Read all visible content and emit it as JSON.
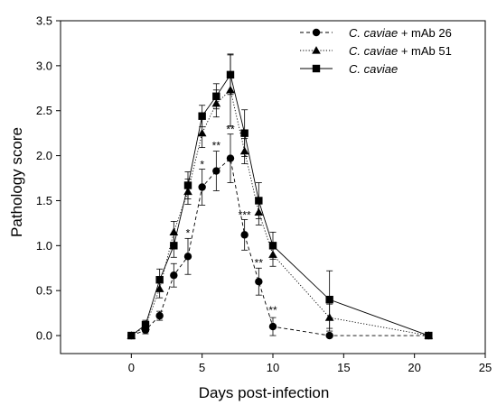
{
  "chart_data": {
    "type": "line",
    "xlabel": "Days post-infection",
    "ylabel": "Pathology score",
    "xlim": [
      -5,
      25
    ],
    "ylim": [
      -0.2,
      3.5
    ],
    "xticks": [
      0,
      5,
      10,
      15,
      20,
      25
    ],
    "yticks": [
      0.0,
      0.5,
      1.0,
      1.5,
      2.0,
      2.5,
      3.0,
      3.5
    ],
    "ytick_labels": [
      "0.0",
      "0.5",
      "1.0",
      "1.5",
      "2.0",
      "2.5",
      "3.0",
      "3.5"
    ],
    "legend_position": "top-right",
    "series": [
      {
        "key": "mab26",
        "name_italic": "C. caviae",
        "name_suffix": " + mAb 26",
        "marker": "circle",
        "dash": "dashed",
        "points": [
          {
            "x": 0,
            "y": 0.0,
            "err": 0.03
          },
          {
            "x": 1,
            "y": 0.06,
            "err": 0.04
          },
          {
            "x": 2,
            "y": 0.22,
            "err": 0.05
          },
          {
            "x": 3,
            "y": 0.67,
            "err": 0.13
          },
          {
            "x": 4,
            "y": 0.88,
            "err": 0.2
          },
          {
            "x": 5,
            "y": 1.65,
            "err": 0.2
          },
          {
            "x": 6,
            "y": 1.83,
            "err": 0.22
          },
          {
            "x": 7,
            "y": 1.97,
            "err": 0.27
          },
          {
            "x": 8,
            "y": 1.12,
            "err": 0.17
          },
          {
            "x": 9,
            "y": 0.6,
            "err": 0.15
          },
          {
            "x": 10,
            "y": 0.1,
            "err": 0.1
          },
          {
            "x": 14,
            "y": 0.0,
            "err": 0.0
          },
          {
            "x": 21,
            "y": 0.0,
            "err": 0.0
          }
        ]
      },
      {
        "key": "mab51",
        "name_italic": "C. caviae",
        "name_suffix": " + mAb 51",
        "marker": "triangle",
        "dash": "dotted",
        "points": [
          {
            "x": 0,
            "y": 0.0,
            "err": 0.03
          },
          {
            "x": 1,
            "y": 0.1,
            "err": 0.05
          },
          {
            "x": 2,
            "y": 0.52,
            "err": 0.1
          },
          {
            "x": 3,
            "y": 1.15,
            "err": 0.12
          },
          {
            "x": 4,
            "y": 1.6,
            "err": 0.14
          },
          {
            "x": 5,
            "y": 2.25,
            "err": 0.16
          },
          {
            "x": 6,
            "y": 2.58,
            "err": 0.15
          },
          {
            "x": 7,
            "y": 2.73,
            "err": 0.4
          },
          {
            "x": 8,
            "y": 2.05,
            "err": 0.14
          },
          {
            "x": 9,
            "y": 1.37,
            "err": 0.14
          },
          {
            "x": 10,
            "y": 0.9,
            "err": 0.13
          },
          {
            "x": 14,
            "y": 0.2,
            "err": 0.15
          },
          {
            "x": 21,
            "y": 0.0,
            "err": 0.0
          }
        ]
      },
      {
        "key": "ccav",
        "name_italic": "C. caviae",
        "name_suffix": "",
        "marker": "square",
        "dash": "solid",
        "points": [
          {
            "x": 0,
            "y": 0.0,
            "err": 0.03
          },
          {
            "x": 1,
            "y": 0.12,
            "err": 0.05
          },
          {
            "x": 2,
            "y": 0.62,
            "err": 0.12
          },
          {
            "x": 3,
            "y": 1.0,
            "err": 0.13
          },
          {
            "x": 4,
            "y": 1.67,
            "err": 0.15
          },
          {
            "x": 5,
            "y": 2.44,
            "err": 0.12
          },
          {
            "x": 6,
            "y": 2.66,
            "err": 0.14
          },
          {
            "x": 7,
            "y": 2.9,
            "err": 0.22
          },
          {
            "x": 8,
            "y": 2.25,
            "err": 0.26
          },
          {
            "x": 9,
            "y": 1.5,
            "err": 0.2
          },
          {
            "x": 10,
            "y": 1.0,
            "err": 0.15
          },
          {
            "x": 14,
            "y": 0.4,
            "err": 0.32
          },
          {
            "x": 21,
            "y": 0.0,
            "err": 0.0
          }
        ]
      }
    ],
    "annotations": [
      {
        "text": "*",
        "x": 4,
        "y": 1.1
      },
      {
        "text": "*",
        "x": 5,
        "y": 1.86
      },
      {
        "text": "**",
        "x": 6,
        "y": 2.07
      },
      {
        "text": "**",
        "x": 7,
        "y": 2.25
      },
      {
        "text": "***",
        "x": 8,
        "y": 1.3
      },
      {
        "text": "**",
        "x": 9,
        "y": 0.77
      },
      {
        "text": "**",
        "x": 10,
        "y": 0.24
      }
    ]
  }
}
